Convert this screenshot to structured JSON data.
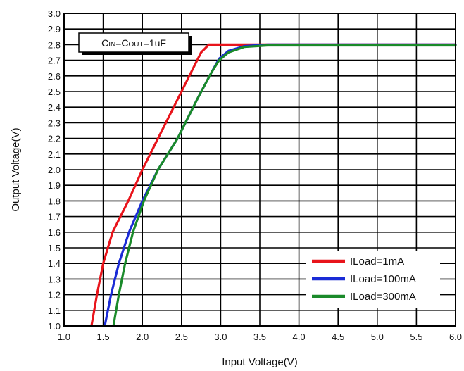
{
  "chart_data": {
    "type": "line",
    "title": "",
    "xlabel": "Input Voltage(V)",
    "ylabel": "Output Voltage(V)",
    "xlim": [
      1.0,
      6.0
    ],
    "ylim": [
      1.0,
      3.0
    ],
    "x_ticks": [
      "1.0",
      "1.5",
      "2.0",
      "2.5",
      "3.0",
      "3.5",
      "4.0",
      "4.5",
      "5.0",
      "5.5",
      "6.0"
    ],
    "y_ticks": [
      "1.0",
      "1.1",
      "1.2",
      "1.3",
      "1.4",
      "1.5",
      "1.6",
      "1.7",
      "1.8",
      "1.9",
      "2.0",
      "2.1",
      "2.2",
      "2.3",
      "2.4",
      "2.5",
      "2.6",
      "2.7",
      "2.8",
      "2.9",
      "3.0"
    ],
    "grid": true,
    "legend_position": "bottom-right",
    "annotation": {
      "parts": [
        {
          "text": "C",
          "small": false
        },
        {
          "text": "IN",
          "small": true
        },
        {
          "text": "=C",
          "small": false
        },
        {
          "text": "OUT",
          "small": true
        },
        {
          "text": "=1uF",
          "small": false
        }
      ]
    },
    "series": [
      {
        "name": "ILoad=1mA",
        "color": "#e8141b",
        "points": [
          [
            1.35,
            1.0
          ],
          [
            1.42,
            1.2
          ],
          [
            1.5,
            1.4
          ],
          [
            1.62,
            1.6
          ],
          [
            1.82,
            1.8
          ],
          [
            2.0,
            2.0
          ],
          [
            2.2,
            2.2
          ],
          [
            2.4,
            2.4
          ],
          [
            2.6,
            2.6
          ],
          [
            2.75,
            2.75
          ],
          [
            2.85,
            2.8
          ],
          [
            3.0,
            2.8
          ],
          [
            6.0,
            2.8
          ]
        ]
      },
      {
        "name": "ILoad=100mA",
        "color": "#1a2bd6",
        "points": [
          [
            1.52,
            1.0
          ],
          [
            1.6,
            1.2
          ],
          [
            1.7,
            1.4
          ],
          [
            1.83,
            1.6
          ],
          [
            2.0,
            1.8
          ],
          [
            2.2,
            2.0
          ],
          [
            2.45,
            2.2
          ],
          [
            2.7,
            2.45
          ],
          [
            2.88,
            2.62
          ],
          [
            2.98,
            2.71
          ],
          [
            3.1,
            2.76
          ],
          [
            3.3,
            2.79
          ],
          [
            3.6,
            2.8
          ],
          [
            6.0,
            2.8
          ]
        ]
      },
      {
        "name": "ILoad=300mA",
        "color": "#1a8a2a",
        "points": [
          [
            1.63,
            1.0
          ],
          [
            1.7,
            1.2
          ],
          [
            1.78,
            1.4
          ],
          [
            1.88,
            1.6
          ],
          [
            2.02,
            1.8
          ],
          [
            2.2,
            2.0
          ],
          [
            2.45,
            2.2
          ],
          [
            2.7,
            2.45
          ],
          [
            2.88,
            2.62
          ],
          [
            2.98,
            2.7
          ],
          [
            3.1,
            2.75
          ],
          [
            3.3,
            2.785
          ],
          [
            3.6,
            2.795
          ],
          [
            6.0,
            2.795
          ]
        ]
      }
    ]
  }
}
